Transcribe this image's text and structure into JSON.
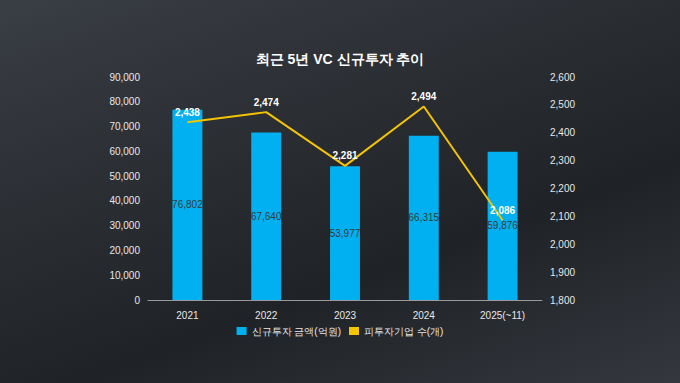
{
  "chart_data": {
    "type": "bar",
    "title": "최근 5년 VC 신규투자 추이",
    "categories": [
      "2021",
      "2022",
      "2023",
      "2024",
      "2025(~11)"
    ],
    "series": [
      {
        "name": "신규투자 금액(억원)",
        "type": "bar",
        "color": "#00b0f0",
        "values": [
          76802,
          67640,
          53977,
          66315,
          59876
        ],
        "value_labels": [
          "76,802",
          "67,640",
          "53,977",
          "66,315",
          "59,876"
        ]
      },
      {
        "name": "피투자기업 수(개)",
        "type": "line",
        "axis": "y2",
        "color": "#f5c400",
        "values": [
          2438,
          2474,
          2281,
          2494,
          2086
        ],
        "value_labels": [
          "2,438",
          "2,474",
          "2,281",
          "2,494",
          "2,086"
        ]
      }
    ],
    "ylim": [
      0,
      90000
    ],
    "yticks": [
      0,
      {
        "value": 10000,
        "label": "10,000"
      },
      {
        "value": 20000,
        "label": "20,000"
      },
      {
        "value": 30000,
        "label": "30,000"
      },
      {
        "value": 40000,
        "label": "40,000"
      },
      {
        "value": 50000,
        "label": "50,000"
      },
      {
        "value": 60000,
        "label": "60,000"
      },
      {
        "value": 70000,
        "label": "70,000"
      },
      {
        "value": 80000,
        "label": "80,000"
      },
      {
        "value": 90000,
        "label": "90,000"
      }
    ],
    "y2lim": [
      1800,
      2600
    ],
    "y2ticks": [
      {
        "value": 1800,
        "label": "1,800"
      },
      {
        "value": 1900,
        "label": "1,900"
      },
      {
        "value": 2000,
        "label": "2,000"
      },
      {
        "value": 2100,
        "label": "2,100"
      },
      {
        "value": 2200,
        "label": "2,200"
      },
      {
        "value": 2300,
        "label": "2,300"
      },
      {
        "value": 2400,
        "label": "2,400"
      },
      {
        "value": 2500,
        "label": "2,500"
      },
      {
        "value": 2600,
        "label": "2,600"
      }
    ],
    "grid": false,
    "legend": "bottom",
    "data_labels": true
  }
}
